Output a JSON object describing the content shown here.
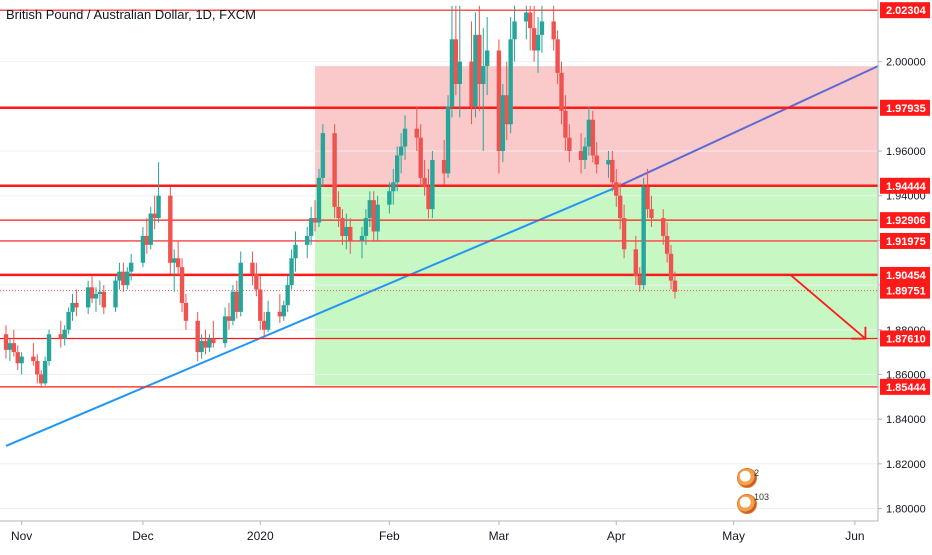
{
  "title": "British Pound / Australian Dollar, 1D, FXCM",
  "colors": {
    "up": "#26a69a",
    "down": "#ef5350",
    "level_line": "#ff1a1a",
    "price_label_bg": "#ff1a1a",
    "resistance_zone": "#f8b4b4",
    "support_zone": "#b9f5b4",
    "trendline_blue": "#2196f3",
    "trendline_indigo": "#5b6bd6",
    "arrow": "#ff1a1a"
  },
  "badges": {
    "first_count": "2",
    "second_count": "103"
  },
  "chart_data": {
    "type": "candlestick",
    "symbol": "British Pound / Australian Dollar",
    "timeframe": "1D",
    "source": "FXCM",
    "x_ticks": [
      "Nov",
      "Dec",
      "2020",
      "Feb",
      "Mar",
      "Apr",
      "May",
      "Jun"
    ],
    "y_ticks": [
      "1.80000",
      "1.82000",
      "1.84000",
      "1.86000",
      "1.88000",
      "1.90000",
      "1.92000",
      "1.94000",
      "1.96000",
      "2.00000"
    ],
    "ylim": [
      1.79,
      2.025
    ],
    "x_range": [
      "2019-10-28",
      "2020-06-15"
    ],
    "current_price": "1.89751",
    "levels": [
      {
        "price": 2.02304,
        "label": "2.02304",
        "thick": false
      },
      {
        "price": 1.97935,
        "label": "1.97935",
        "thick": true
      },
      {
        "price": 1.94444,
        "label": "1.94444",
        "thick": true
      },
      {
        "price": 1.92906,
        "label": "1.92906",
        "thick": false
      },
      {
        "price": 1.91975,
        "label": "1.91975",
        "thick": false
      },
      {
        "price": 1.90454,
        "label": "1.90454",
        "thick": true
      },
      {
        "price": 1.8761,
        "label": "1.87610",
        "thick": false
      },
      {
        "price": 1.85444,
        "label": "1.85444",
        "thick": false
      }
    ],
    "zones": [
      {
        "name": "resistance",
        "from_date": "2020-01-15",
        "to_date": "2020-06-15",
        "low": 1.94444,
        "high": 1.998
      },
      {
        "name": "support",
        "from_date": "2020-01-15",
        "to_date": "2020-06-15",
        "low": 1.855,
        "high": 1.94444
      }
    ],
    "trendlines": [
      {
        "name": "rising-support",
        "points": [
          [
            "2019-10-28",
            1.828
          ],
          [
            "2020-03-31",
            1.943
          ]
        ]
      },
      {
        "name": "rising-support-extension",
        "points": [
          [
            "2020-03-31",
            1.943
          ],
          [
            "2020-06-15",
            1.998
          ]
        ]
      }
    ],
    "projection_arrow": {
      "from": [
        "2020-05-12",
        1.9
      ],
      "to": [
        "2020-05-26",
        1.876
      ]
    },
    "candles": [
      [
        1.878,
        1.882,
        1.867,
        1.871
      ],
      [
        1.871,
        1.876,
        1.866,
        1.874
      ],
      [
        1.874,
        1.88,
        1.868,
        1.87
      ],
      [
        1.87,
        1.873,
        1.862,
        1.865
      ],
      [
        1.865,
        1.87,
        1.86,
        1.868
      ],
      [
        1.868,
        1.874,
        1.864,
        1.866
      ],
      [
        1.866,
        1.869,
        1.856,
        1.86
      ],
      [
        1.86,
        1.862,
        1.854,
        1.856
      ],
      [
        1.856,
        1.868,
        1.855,
        1.866
      ],
      [
        1.866,
        1.88,
        1.864,
        1.878
      ],
      [
        1.878,
        1.884,
        1.872,
        1.876
      ],
      [
        1.876,
        1.882,
        1.873,
        1.88
      ],
      [
        1.88,
        1.89,
        1.878,
        1.888
      ],
      [
        1.888,
        1.896,
        1.884,
        1.892
      ],
      [
        1.892,
        1.898,
        1.886,
        1.89
      ],
      [
        1.89,
        1.902,
        1.887,
        1.899
      ],
      [
        1.899,
        1.904,
        1.892,
        1.894
      ],
      [
        1.894,
        1.899,
        1.888,
        1.896
      ],
      [
        1.896,
        1.902,
        1.891,
        1.897
      ],
      [
        1.897,
        1.9,
        1.887,
        1.89
      ],
      [
        1.89,
        1.904,
        1.888,
        1.902
      ],
      [
        1.902,
        1.91,
        1.898,
        1.906
      ],
      [
        1.906,
        1.91,
        1.897,
        1.9
      ],
      [
        1.9,
        1.908,
        1.898,
        1.906
      ],
      [
        1.906,
        1.914,
        1.902,
        1.91
      ],
      [
        1.91,
        1.926,
        1.908,
        1.922
      ],
      [
        1.922,
        1.93,
        1.914,
        1.918
      ],
      [
        1.918,
        1.935,
        1.916,
        1.932
      ],
      [
        1.932,
        1.94,
        1.925,
        1.93
      ],
      [
        1.93,
        1.955,
        1.928,
        1.94
      ],
      [
        1.94,
        1.944,
        1.905,
        1.91
      ],
      [
        1.91,
        1.916,
        1.897,
        1.912
      ],
      [
        1.912,
        1.92,
        1.904,
        1.908
      ],
      [
        1.908,
        1.912,
        1.888,
        1.892
      ],
      [
        1.892,
        1.896,
        1.88,
        1.884
      ],
      [
        1.884,
        1.888,
        1.866,
        1.87
      ],
      [
        1.87,
        1.878,
        1.867,
        1.875
      ],
      [
        1.875,
        1.88,
        1.869,
        1.872
      ],
      [
        1.872,
        1.878,
        1.87,
        1.876
      ],
      [
        1.876,
        1.884,
        1.872,
        1.874
      ],
      [
        1.874,
        1.89,
        1.872,
        1.886
      ],
      [
        1.886,
        1.892,
        1.88,
        1.884
      ],
      [
        1.884,
        1.9,
        1.882,
        1.897
      ],
      [
        1.897,
        1.902,
        1.885,
        1.888
      ],
      [
        1.888,
        1.915,
        1.886,
        1.91
      ],
      [
        1.91,
        1.915,
        1.9,
        1.905
      ],
      [
        1.905,
        1.91,
        1.895,
        1.898
      ],
      [
        1.898,
        1.904,
        1.88,
        1.884
      ],
      [
        1.884,
        1.888,
        1.877,
        1.88
      ],
      [
        1.88,
        1.893,
        1.879,
        1.888
      ],
      [
        1.888,
        1.896,
        1.883,
        1.886
      ],
      [
        1.886,
        1.893,
        1.884,
        1.891
      ],
      [
        1.891,
        1.904,
        1.888,
        1.9
      ],
      [
        1.9,
        1.916,
        1.898,
        1.912
      ],
      [
        1.912,
        1.924,
        1.906,
        1.918
      ],
      [
        1.918,
        1.926,
        1.912,
        1.922
      ],
      [
        1.922,
        1.935,
        1.918,
        1.93
      ],
      [
        1.93,
        1.938,
        1.924,
        1.928
      ],
      [
        1.928,
        1.952,
        1.926,
        1.948
      ],
      [
        1.948,
        1.972,
        1.944,
        1.968
      ],
      [
        1.968,
        1.972,
        1.93,
        1.935
      ],
      [
        1.935,
        1.942,
        1.926,
        1.93
      ],
      [
        1.93,
        1.934,
        1.918,
        1.922
      ],
      [
        1.922,
        1.932,
        1.916,
        1.926
      ],
      [
        1.926,
        1.93,
        1.914,
        1.92
      ],
      [
        1.92,
        1.926,
        1.912,
        1.922
      ],
      [
        1.922,
        1.934,
        1.918,
        1.93
      ],
      [
        1.93,
        1.942,
        1.926,
        1.938
      ],
      [
        1.938,
        1.942,
        1.92,
        1.924
      ],
      [
        1.924,
        1.94,
        1.92,
        1.936
      ],
      [
        1.936,
        1.946,
        1.932,
        1.942
      ],
      [
        1.942,
        1.952,
        1.936,
        1.946
      ],
      [
        1.946,
        1.962,
        1.942,
        1.958
      ],
      [
        1.958,
        1.968,
        1.95,
        1.962
      ],
      [
        1.962,
        1.976,
        1.956,
        1.97
      ],
      [
        1.97,
        1.98,
        1.96,
        1.966
      ],
      [
        1.966,
        1.972,
        1.944,
        1.948
      ],
      [
        1.948,
        1.956,
        1.94,
        1.944
      ],
      [
        1.944,
        1.952,
        1.93,
        1.934
      ],
      [
        1.934,
        1.96,
        1.93,
        1.956
      ],
      [
        1.956,
        1.965,
        1.945,
        1.95
      ],
      [
        1.95,
        1.985,
        1.948,
        1.98
      ],
      [
        1.98,
        2.025,
        1.975,
        2.01
      ],
      [
        2.01,
        2.025,
        1.985,
        1.99
      ],
      [
        1.99,
        2.025,
        1.975,
        2.0
      ],
      [
        2.0,
        2.018,
        1.972,
        1.98
      ],
      [
        1.98,
        2.022,
        1.975,
        2.012
      ],
      [
        2.012,
        2.025,
        1.978,
        1.99
      ],
      [
        1.99,
        2.015,
        1.96,
        1.998
      ],
      [
        1.998,
        2.02,
        1.985,
        2.005
      ],
      [
        2.005,
        2.01,
        1.95,
        1.96
      ],
      [
        1.96,
        1.99,
        1.955,
        1.985
      ],
      [
        1.985,
        2.0,
        1.965,
        1.972
      ],
      [
        1.972,
        2.02,
        1.968,
        2.01
      ],
      [
        2.01,
        2.025,
        2.0,
        2.018
      ],
      [
        2.018,
        2.025,
        2.01,
        2.022
      ],
      [
        2.022,
        2.025,
        2.005,
        2.015
      ],
      [
        2.015,
        2.025,
        2.0,
        2.005
      ],
      [
        2.005,
        2.02,
        1.995,
        2.012
      ],
      [
        2.012,
        2.025,
        2.004,
        2.018
      ],
      [
        2.018,
        2.025,
        2.005,
        2.01
      ],
      [
        2.01,
        2.014,
        1.99,
        1.995
      ],
      [
        1.995,
        2.0,
        1.972,
        1.978
      ],
      [
        1.978,
        1.985,
        1.96,
        1.966
      ],
      [
        1.966,
        1.972,
        1.955,
        1.96
      ],
      [
        1.96,
        1.968,
        1.95,
        1.956
      ],
      [
        1.956,
        1.966,
        1.952,
        1.962
      ],
      [
        1.962,
        1.98,
        1.958,
        1.974
      ],
      [
        1.974,
        1.978,
        1.955,
        1.958
      ],
      [
        1.958,
        1.964,
        1.95,
        1.954
      ],
      [
        1.954,
        1.96,
        1.948,
        1.956
      ],
      [
        1.956,
        1.96,
        1.942,
        1.946
      ],
      [
        1.946,
        1.952,
        1.935,
        1.94
      ],
      [
        1.94,
        1.946,
        1.925,
        1.93
      ],
      [
        1.93,
        1.936,
        1.912,
        1.916
      ],
      [
        1.916,
        1.922,
        1.9,
        1.904
      ],
      [
        1.904,
        1.908,
        1.897,
        1.9
      ],
      [
        1.9,
        1.948,
        1.898,
        1.944
      ],
      [
        1.944,
        1.952,
        1.93,
        1.934
      ],
      [
        1.934,
        1.94,
        1.926,
        1.93
      ],
      [
        1.93,
        1.934,
        1.918,
        1.922
      ],
      [
        1.922,
        1.928,
        1.91,
        1.914
      ],
      [
        1.914,
        1.918,
        1.898,
        1.902
      ],
      [
        1.902,
        1.906,
        1.894,
        1.897
      ]
    ]
  }
}
